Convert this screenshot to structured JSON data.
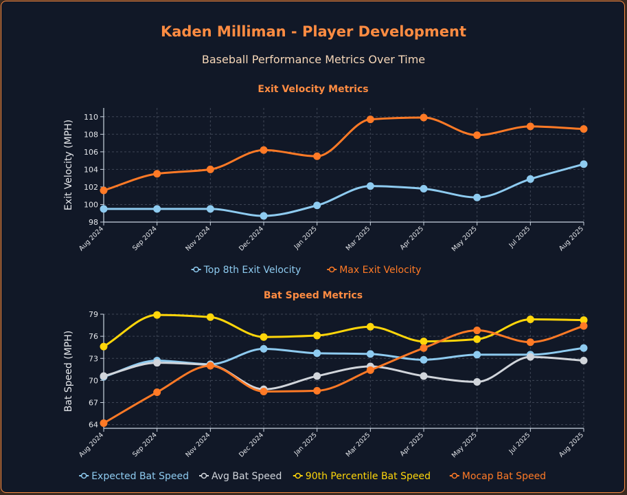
{
  "page": {
    "title": "Kaden Milliman - Player Development",
    "subtitle": "Baseball Performance Metrics Over Time"
  },
  "colors": {
    "background": "#111827",
    "border": "#ff8c42",
    "title": "#ff8c42",
    "axis": "#cbd5e1",
    "grid": "#3f4656"
  },
  "chart_data": [
    {
      "type": "line",
      "title": "Exit Velocity Metrics",
      "xlabel": "",
      "ylabel": "Exit Velocity (MPH)",
      "categories": [
        "Aug 2024",
        "Sep 2024",
        "Nov 2024",
        "Dec 2024",
        "Jan 2025",
        "Mar 2025",
        "Apr 2025",
        "May 2025",
        "Jul 2025",
        "Aug 2025"
      ],
      "ylim": [
        98,
        111
      ],
      "yticks": [
        98,
        100,
        102,
        104,
        106,
        108,
        110
      ],
      "grid": true,
      "legend_position": "bottom",
      "series": [
        {
          "name": "Top 8th Exit Velocity",
          "color": "#8ecbf0",
          "values": [
            99.5,
            99.5,
            99.5,
            98.7,
            99.9,
            102.1,
            101.8,
            100.8,
            102.9,
            104.6
          ]
        },
        {
          "name": "Max Exit Velocity",
          "color": "#ff7a26",
          "values": [
            101.6,
            103.5,
            104.0,
            106.2,
            105.5,
            109.7,
            109.9,
            107.9,
            108.9,
            108.6
          ]
        }
      ]
    },
    {
      "type": "line",
      "title": "Bat Speed Metrics",
      "xlabel": "",
      "ylabel": "Bat Speed (MPH)",
      "categories": [
        "Aug 2024",
        "Sep 2024",
        "Nov 2024",
        "Dec 2024",
        "Jan 2025",
        "Mar 2025",
        "Apr 2025",
        "May 2025",
        "Jul 2025",
        "Aug 2025"
      ],
      "ylim": [
        63.5,
        79
      ],
      "yticks": [
        64,
        67,
        70,
        73,
        76,
        79
      ],
      "grid": true,
      "legend_position": "bottom",
      "series": [
        {
          "name": "Expected Bat Speed",
          "color": "#8ecbf0",
          "values": [
            70.5,
            72.7,
            72.2,
            74.3,
            73.7,
            73.6,
            72.8,
            73.5,
            73.5,
            74.4
          ]
        },
        {
          "name": "Avg Bat Speed",
          "color": "#d1d5db",
          "values": [
            70.6,
            72.4,
            72.1,
            68.8,
            70.6,
            71.9,
            70.6,
            69.8,
            73.2,
            72.7
          ]
        },
        {
          "name": "90th Percentile Bat Speed",
          "color": "#ffd60a",
          "values": [
            74.6,
            78.9,
            78.6,
            75.9,
            76.1,
            77.3,
            75.3,
            75.6,
            78.3,
            78.2
          ]
        },
        {
          "name": "Mocap Bat Speed",
          "color": "#ff7a26",
          "values": [
            64.2,
            68.4,
            72.0,
            68.5,
            68.6,
            71.4,
            74.4,
            76.8,
            75.2,
            77.4
          ]
        }
      ]
    }
  ]
}
